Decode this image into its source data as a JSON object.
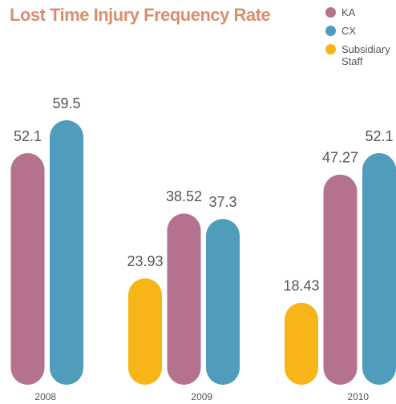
{
  "chart_data": {
    "type": "bar",
    "title": "Lost Time Injury Frequency Rate",
    "categories": [
      "2008",
      "2009",
      "2010"
    ],
    "series": [
      {
        "name": "KA",
        "color": "#b5728f",
        "values": [
          52.1,
          38.52,
          47.27
        ]
      },
      {
        "name": "CX",
        "color": "#4f9dba",
        "values": [
          59.5,
          37.3,
          52.1
        ]
      },
      {
        "name": "Subsidiary Staff",
        "color": "#f8b518",
        "values": [
          null,
          23.93,
          18.43
        ]
      }
    ]
  }
}
